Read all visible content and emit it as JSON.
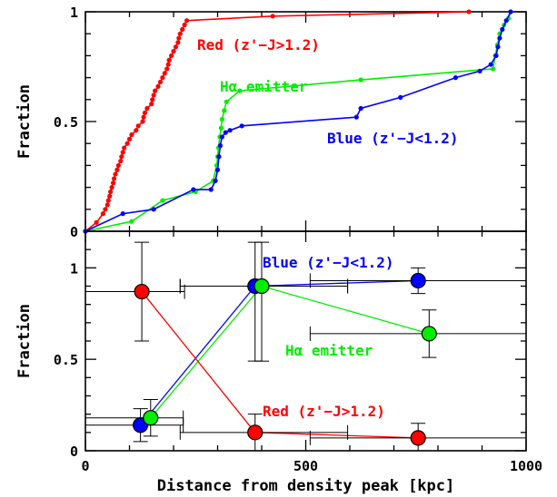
{
  "chart_data": [
    {
      "type": "line",
      "subtype": "cumulative-distribution",
      "ylabel": "Fraction",
      "xlim": [
        0,
        1000
      ],
      "ylim": [
        0,
        1
      ],
      "x_ticks": [
        0,
        500,
        1000
      ],
      "y_ticks": [
        0,
        0.5,
        1
      ],
      "y_tick_labels": [
        "0",
        "0.5",
        "1"
      ],
      "grid": false,
      "annotations": [
        {
          "text": "Red (z'−J>1.2)",
          "color": "#ff0000"
        },
        {
          "text": "Hα emitter",
          "color": "#00ee00"
        },
        {
          "text": "Blue (z'−J<1.2)",
          "color": "#0000ff"
        }
      ],
      "series": [
        {
          "color": "#ff0000",
          "x": [
            0,
            25,
            40,
            45,
            50,
            52,
            55,
            57,
            60,
            63,
            65,
            68,
            72,
            75,
            80,
            82,
            85,
            88,
            95,
            100,
            105,
            115,
            120,
            130,
            132,
            135,
            140,
            150,
            152,
            155,
            158,
            165,
            170,
            175,
            180,
            185,
            188,
            190,
            195,
            200,
            205,
            210,
            212,
            215,
            220,
            225,
            230,
            425,
            870
          ],
          "y": [
            0,
            0.04,
            0.08,
            0.1,
            0.12,
            0.14,
            0.16,
            0.18,
            0.2,
            0.22,
            0.24,
            0.26,
            0.28,
            0.3,
            0.32,
            0.34,
            0.36,
            0.38,
            0.4,
            0.42,
            0.44,
            0.46,
            0.48,
            0.5,
            0.52,
            0.54,
            0.56,
            0.58,
            0.6,
            0.62,
            0.64,
            0.66,
            0.68,
            0.7,
            0.72,
            0.74,
            0.76,
            0.78,
            0.8,
            0.82,
            0.84,
            0.86,
            0.88,
            0.9,
            0.92,
            0.94,
            0.96,
            0.98,
            1.0
          ]
        },
        {
          "color": "#00ee00",
          "x": [
            0,
            105,
            175,
            250,
            290,
            298,
            300,
            302,
            305,
            308,
            310,
            315,
            320,
            350,
            625,
            925,
            930,
            935,
            940,
            950,
            960,
            965
          ],
          "y": [
            0,
            0.045,
            0.14,
            0.18,
            0.23,
            0.3,
            0.34,
            0.38,
            0.43,
            0.47,
            0.51,
            0.55,
            0.59,
            0.64,
            0.69,
            0.74,
            0.8,
            0.85,
            0.9,
            0.94,
            0.97,
            1.0
          ]
        },
        {
          "color": "#0000ff",
          "x": [
            0,
            85,
            155,
            245,
            285,
            295,
            300,
            303,
            306,
            310,
            318,
            328,
            355,
            615,
            625,
            715,
            840,
            895,
            920,
            932,
            936,
            940,
            946,
            955,
            965
          ],
          "y": [
            0,
            0.08,
            0.1,
            0.19,
            0.19,
            0.23,
            0.28,
            0.34,
            0.39,
            0.43,
            0.45,
            0.46,
            0.48,
            0.52,
            0.56,
            0.61,
            0.7,
            0.73,
            0.76,
            0.8,
            0.84,
            0.88,
            0.92,
            0.96,
            1.0
          ]
        }
      ]
    },
    {
      "type": "scatter",
      "subtype": "points-with-error-bars",
      "xlabel": "Distance from density peak [kpc]",
      "ylabel": "Fraction",
      "xlim": [
        0,
        1000
      ],
      "ylim": [
        0,
        1.2
      ],
      "x_ticks": [
        0,
        500,
        1000
      ],
      "x_tick_labels": [
        "0",
        "500",
        "1000"
      ],
      "y_ticks": [
        0,
        0.5,
        1
      ],
      "y_tick_labels": [
        "0",
        "0.5",
        "1"
      ],
      "grid": false,
      "annotations": [
        {
          "text": "Blue (z'−J<1.2)",
          "color": "#0000ff"
        },
        {
          "text": "Hα emitter",
          "color": "#00ee00"
        },
        {
          "text": "Red (z'−J>1.2)",
          "color": "#ff0000"
        }
      ],
      "series": [
        {
          "color": "#ff0000",
          "x": [
            128,
            385,
            755
          ],
          "y": [
            0.87,
            0.1,
            0.07
          ],
          "x_err_low": [
            128,
            170,
            245
          ],
          "x_err_high": [
            97,
            210,
            245
          ],
          "y_err_low": [
            0.27,
            0.1,
            0.07
          ],
          "y_err_high": [
            0.27,
            0.1,
            0.08
          ]
        },
        {
          "color": "#0000ff",
          "x": [
            125,
            385,
            755
          ],
          "y": [
            0.14,
            0.9,
            0.93
          ],
          "x_err_low": [
            125,
            170,
            245
          ],
          "x_err_high": [
            97,
            210,
            245
          ],
          "y_err_low": [
            0.09,
            0.41,
            0.07
          ],
          "y_err_high": [
            0.09,
            0.24,
            0.07
          ]
        },
        {
          "color": "#00ee00",
          "x": [
            148,
            400,
            780
          ],
          "y": [
            0.18,
            0.9,
            0.64
          ],
          "x_err_low": [
            148,
            185,
            270
          ],
          "x_err_high": [
            74,
            195,
            220
          ],
          "y_err_low": [
            0.1,
            0.41,
            0.13
          ],
          "y_err_high": [
            0.1,
            0.24,
            0.13
          ]
        }
      ]
    }
  ]
}
